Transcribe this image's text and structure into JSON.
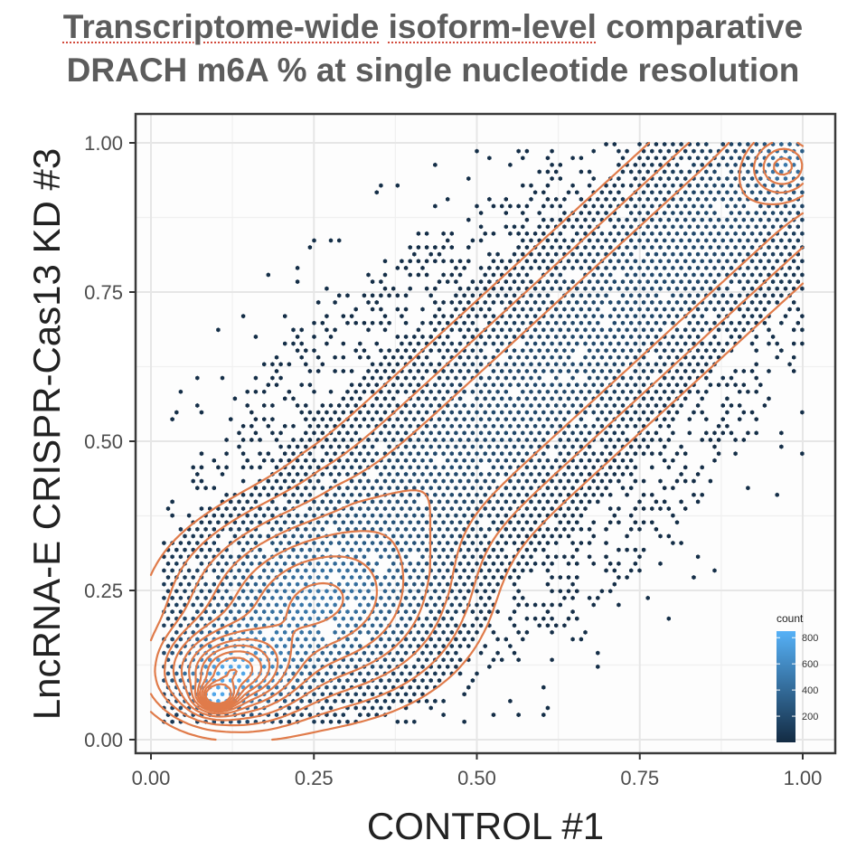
{
  "chart_data": {
    "type": "hexbin",
    "title_line1_words": [
      "Transcriptome-wide",
      "isoform-level",
      "comparative"
    ],
    "title_line2": "DRACH m6A % at single nucleotide resolution",
    "xlabel": "CONTROL #1",
    "ylabel": "LncRNA-E CRISPR-Cas13 KD #3",
    "xlim": [
      0,
      1
    ],
    "ylim": [
      0,
      1
    ],
    "x_ticks": [
      "0.00",
      "0.25",
      "0.50",
      "0.75",
      "1.00"
    ],
    "y_ticks": [
      "0.00",
      "0.25",
      "0.50",
      "0.75",
      "1.00"
    ],
    "grid": true,
    "legend": {
      "title": "count",
      "position": "bottom-right inside",
      "ticks": [
        "200",
        "400",
        "600",
        "800"
      ],
      "range": [
        0,
        850
      ],
      "low_color": "#132b43",
      "high_color": "#56b1f7"
    },
    "density_peaks": [
      {
        "x": 0.12,
        "y": 0.11,
        "note": "main density peak"
      },
      {
        "x": 0.97,
        "y": 0.96,
        "note": "secondary density peak"
      }
    ],
    "contour_color": "#e07b4a",
    "point_color": "#2c3e55",
    "point_range": {
      "x": [
        0.02,
        1.0
      ],
      "y": [
        0.03,
        1.0
      ]
    }
  }
}
